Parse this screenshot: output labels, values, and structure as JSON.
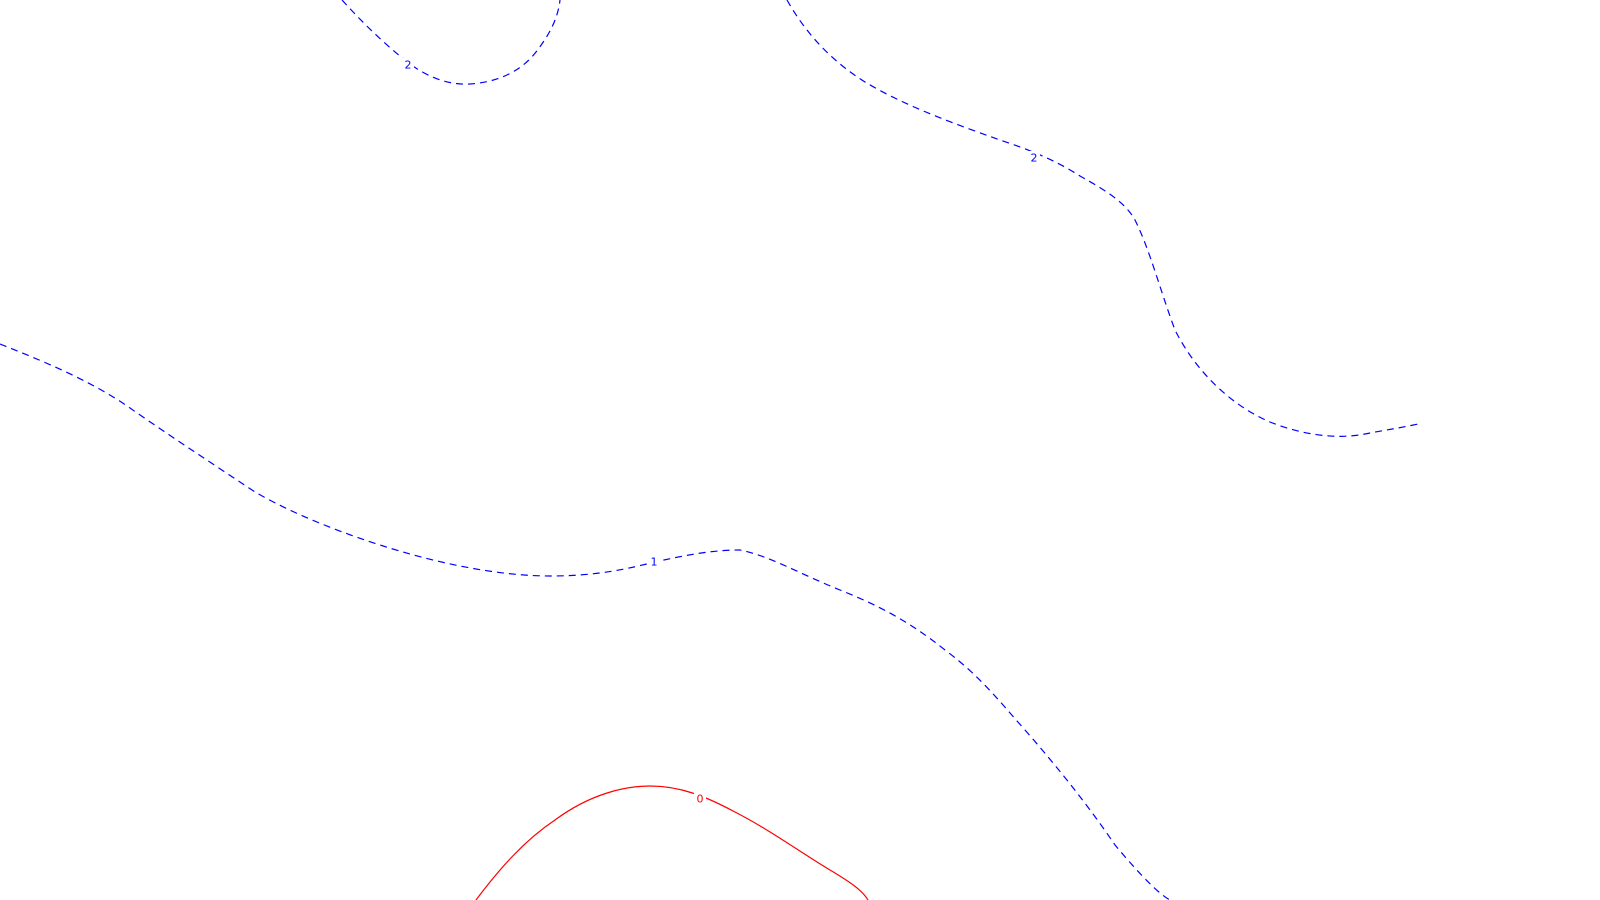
{
  "contours": [
    {
      "id": "contour-2-upper-left",
      "level": 2,
      "label": "2",
      "color": "#0000ff",
      "style": "dashed"
    },
    {
      "id": "contour-2-upper-right",
      "level": 2,
      "label": "2",
      "color": "#0000ff",
      "style": "dashed"
    },
    {
      "id": "contour-1",
      "level": 1,
      "label": "1",
      "color": "#0000ff",
      "style": "dashed"
    },
    {
      "id": "contour-0",
      "level": 0,
      "label": "0",
      "color": "#ff0000",
      "style": "solid"
    }
  ]
}
